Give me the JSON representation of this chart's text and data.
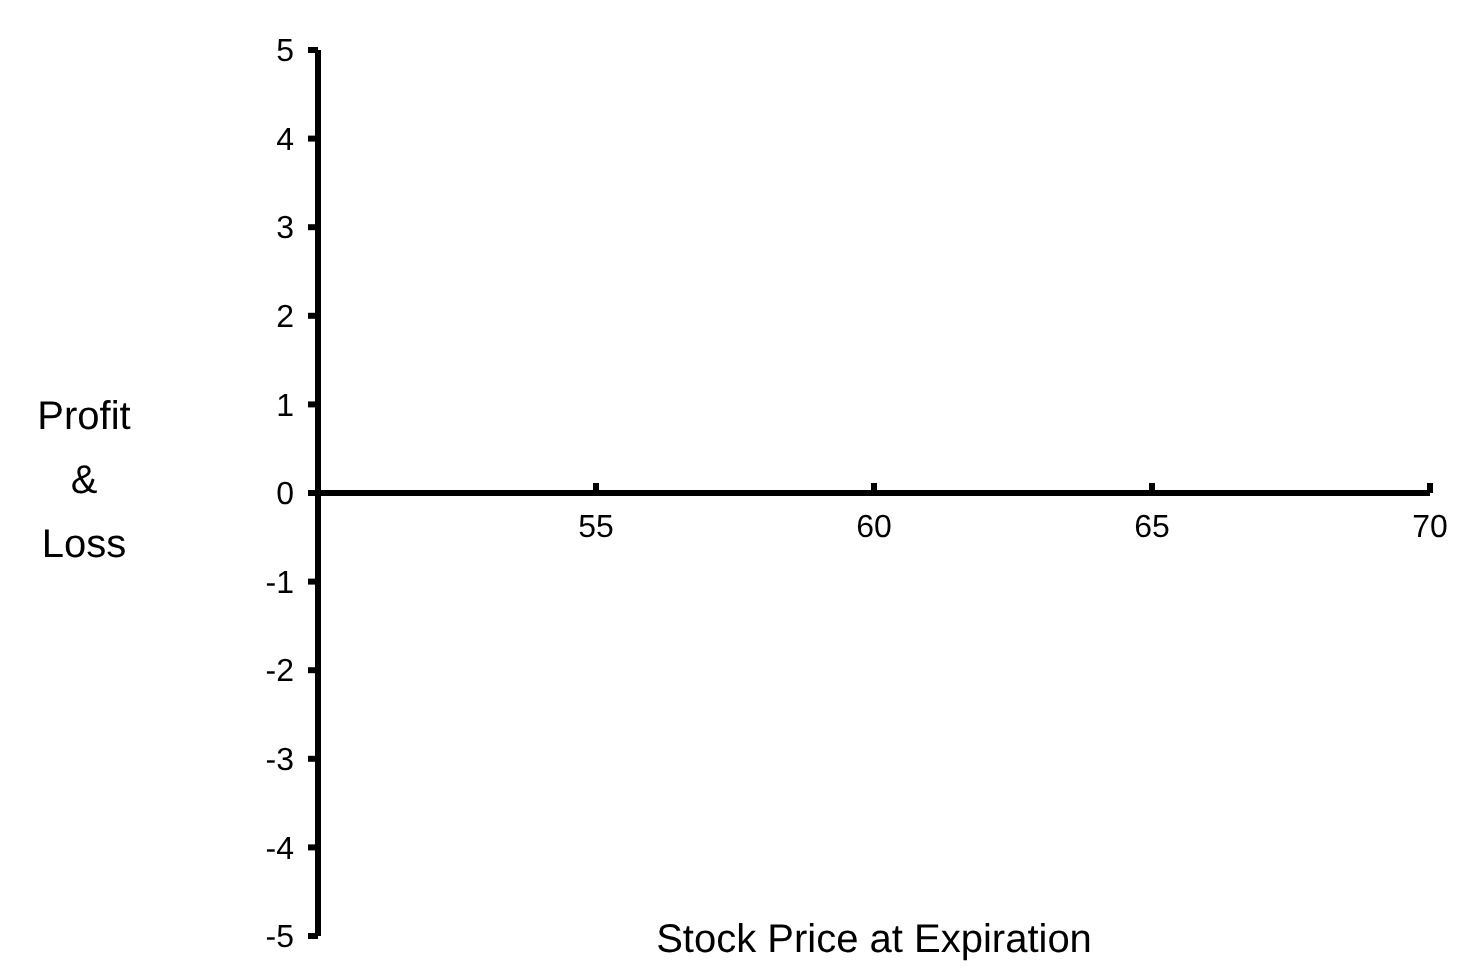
{
  "chart_data": {
    "type": "line",
    "xlabel": "Stock Price at Expiration",
    "ylabel": "Profit & Loss",
    "xlim": [
      50,
      70
    ],
    "xticks": [
      55,
      60,
      65,
      70
    ],
    "ylim": [
      -5,
      5
    ],
    "yticks": [
      -5,
      -4,
      -3,
      -2,
      -1,
      0,
      1,
      2,
      3,
      4,
      5
    ]
  }
}
